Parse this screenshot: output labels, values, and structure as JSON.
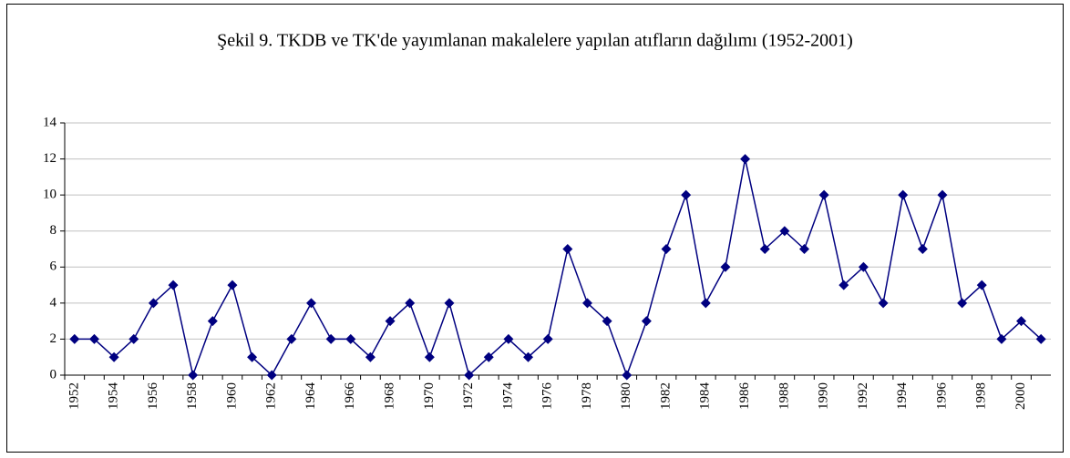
{
  "chart_data": {
    "type": "line",
    "title": "Şekil 9. TKDB ve TK'de yayımlanan makalelere yapılan atıfların dağılımı (1952-2001)",
    "categories": [
      "1952",
      null,
      "1954",
      null,
      "1956",
      null,
      "1958",
      null,
      "1960",
      null,
      "1962",
      null,
      "1964",
      null,
      "1966",
      null,
      "1968",
      null,
      "1970",
      null,
      "1972",
      null,
      "1974",
      null,
      "1976",
      null,
      "1978",
      null,
      "1980",
      null,
      "1982",
      null,
      "1984",
      null,
      "1986",
      null,
      "1988",
      null,
      "1990",
      null,
      "1992",
      null,
      "1994",
      null,
      "1996",
      null,
      "1998",
      null,
      "2000",
      null
    ],
    "values": [
      2,
      2,
      1,
      2,
      4,
      5,
      0,
      3,
      5,
      1,
      0,
      2,
      4,
      2,
      2,
      1,
      3,
      4,
      1,
      4,
      0,
      1,
      2,
      1,
      2,
      7,
      4,
      3,
      0,
      3,
      7,
      10,
      4,
      6,
      12,
      7,
      8,
      7,
      10,
      5,
      6,
      4,
      10,
      7,
      10,
      4,
      5,
      2,
      3,
      2
    ],
    "color": "#000080",
    "ylim": [
      0,
      14
    ],
    "yticks": [
      0,
      2,
      4,
      6,
      8,
      10,
      12,
      14
    ],
    "grid": true
  }
}
